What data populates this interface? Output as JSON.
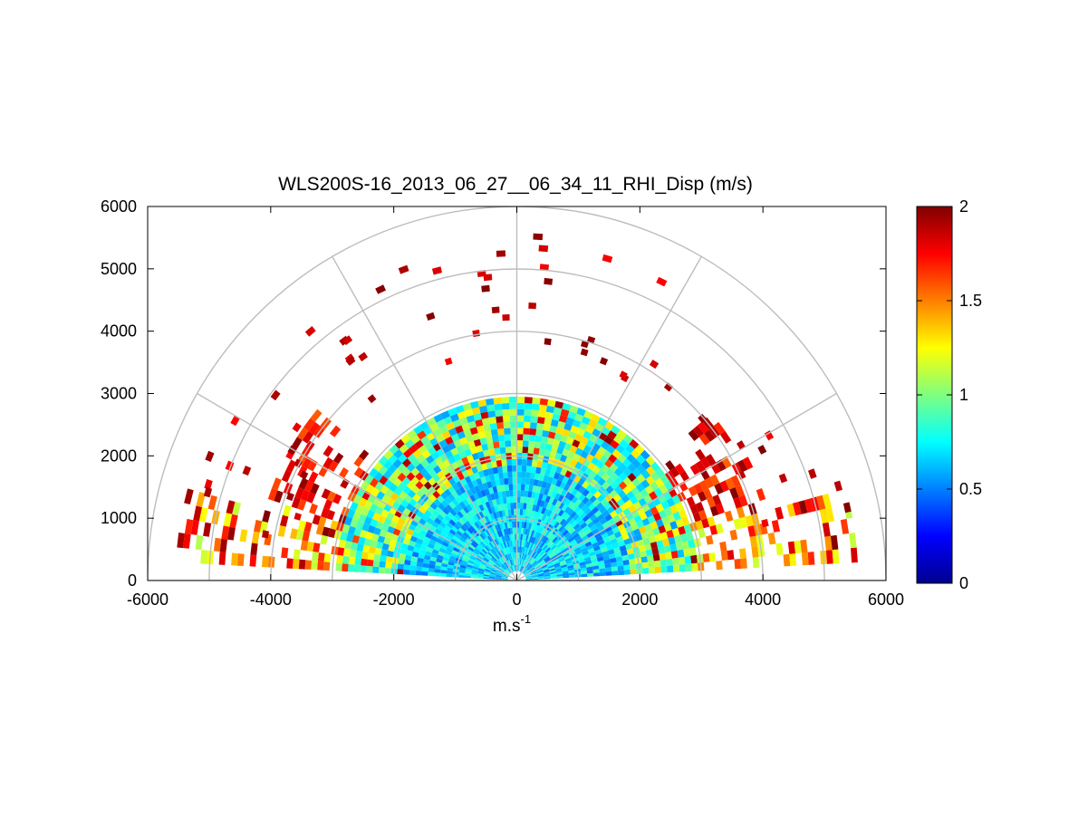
{
  "chart_data": {
    "type": "heatmap",
    "subtype": "polar-rhi-sector",
    "title": "WLS200S-16_2013_06_27__06_34_11_RHI_Disp (m/s)",
    "xlabel_base": "m.s",
    "xlabel_exp": "-1",
    "ylabel": "",
    "xlim": [
      -6000,
      6000
    ],
    "ylim": [
      0,
      6000
    ],
    "xticks": [
      -6000,
      -4000,
      -2000,
      0,
      2000,
      4000,
      6000
    ],
    "xtick_labels": [
      "-6000",
      "-4000",
      "-2000",
      "0",
      "2000",
      "4000",
      "6000"
    ],
    "yticks": [
      0,
      1000,
      2000,
      3000,
      4000,
      5000,
      6000
    ],
    "ytick_labels": [
      "0",
      "1000",
      "2000",
      "3000",
      "4000",
      "5000",
      "6000"
    ],
    "polar_grid": {
      "range_rings_m": [
        1000,
        2000,
        3000,
        4000,
        5000,
        6000
      ],
      "spokes_deg": [
        0,
        30,
        60,
        90,
        120,
        150,
        180
      ]
    },
    "colorbar": {
      "colormap": "jet",
      "range": [
        0,
        2
      ],
      "ticks": [
        0,
        0.5,
        1,
        1.5,
        2
      ],
      "tick_labels": [
        "0",
        "0.5",
        "1",
        "1.5",
        "2"
      ]
    },
    "field": {
      "quantity": "velocity dispersion (m/s)",
      "elevation_range_deg": [
        3,
        177
      ],
      "regions": [
        {
          "desc": "near field, low dispersion",
          "range_m": [
            0,
            1800
          ],
          "value_approx": 0.7
        },
        {
          "desc": "mid range, mixed",
          "range_m": [
            1800,
            2900
          ],
          "value_approx": 0.9
        },
        {
          "desc": "low elevations far range, high",
          "range_m": [
            2900,
            5600
          ],
          "value_approx": 1.6
        },
        {
          "desc": "sparse upper returns",
          "range_m": [
            3600,
            5600
          ],
          "value_approx": 1.9
        }
      ]
    }
  }
}
